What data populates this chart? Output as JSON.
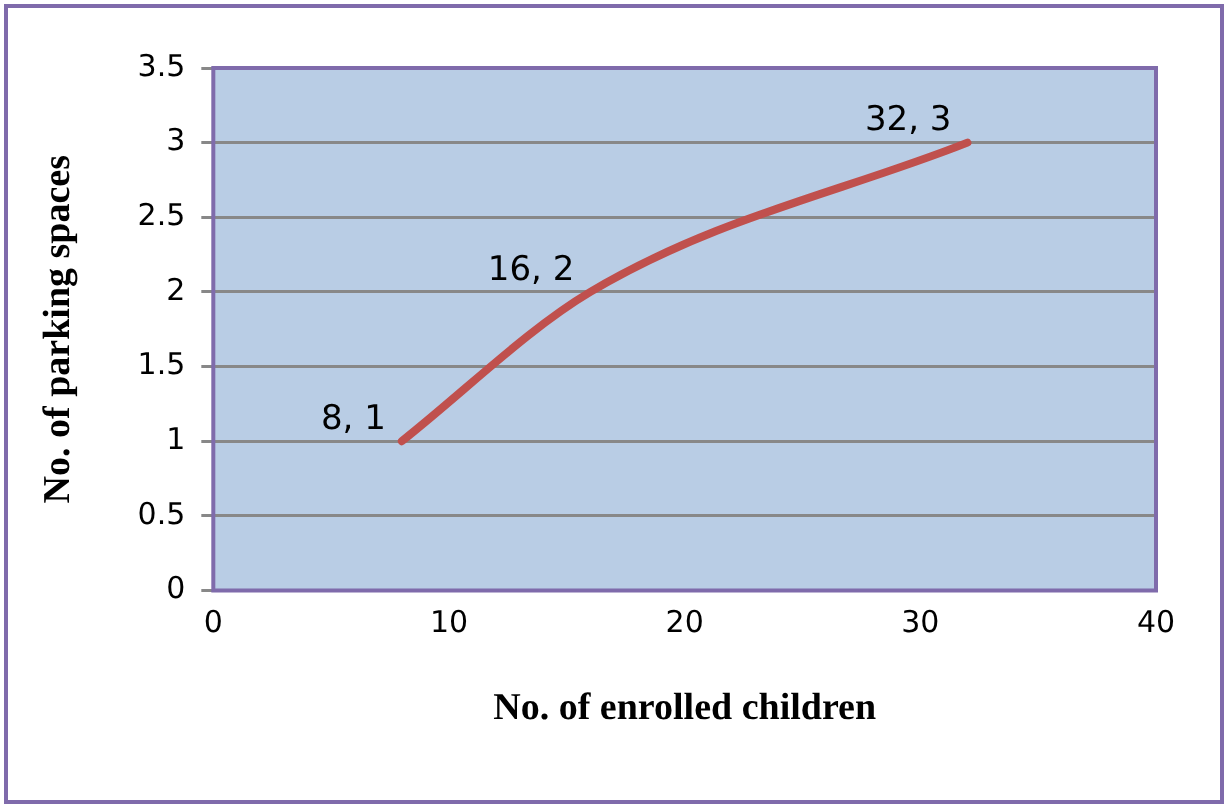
{
  "chart_data": {
    "type": "line",
    "xlabel": "No. of enrolled children",
    "ylabel": "No. of parking spaces",
    "x": [
      8,
      16,
      32
    ],
    "series": [
      {
        "color": "#c0504d",
        "values": [
          1,
          2,
          3
        ],
        "value_labels": [
          "8, 1",
          "16, 2",
          "32, 3"
        ]
      }
    ],
    "xlim": [
      0,
      40
    ],
    "xticks": [
      0,
      10,
      20,
      30,
      40
    ],
    "ylim": [
      0,
      3.5
    ],
    "yticks": [
      0,
      0.5,
      1,
      1.5,
      2,
      2.5,
      3,
      3.5
    ],
    "grid": "y",
    "marker": "none",
    "legend": false
  }
}
